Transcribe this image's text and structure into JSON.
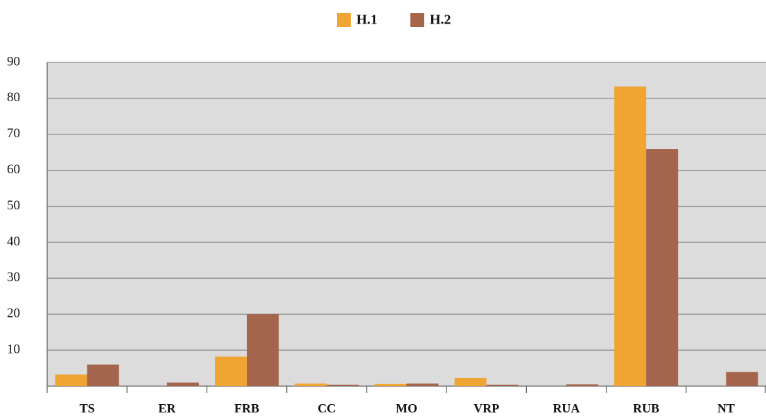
{
  "chart_data": {
    "type": "bar",
    "categories": [
      "TS",
      "ER",
      "FRB",
      "CC",
      "MO",
      "VRP",
      "RUA",
      "RUB",
      "NT"
    ],
    "series": [
      {
        "name": "H.1",
        "color": "#f0a431",
        "values": [
          3.2,
          0,
          8.2,
          0.7,
          0.6,
          2.3,
          0,
          83.3,
          0
        ]
      },
      {
        "name": "H.2",
        "color": "#a5644c",
        "values": [
          6,
          1,
          20,
          0.4,
          0.7,
          0.4,
          0.5,
          65.9,
          3.9
        ]
      }
    ],
    "ylim": [
      0,
      90
    ],
    "yticks": [
      10,
      20,
      30,
      40,
      50,
      60,
      70,
      80,
      90
    ],
    "grid": true,
    "legend": "top"
  }
}
